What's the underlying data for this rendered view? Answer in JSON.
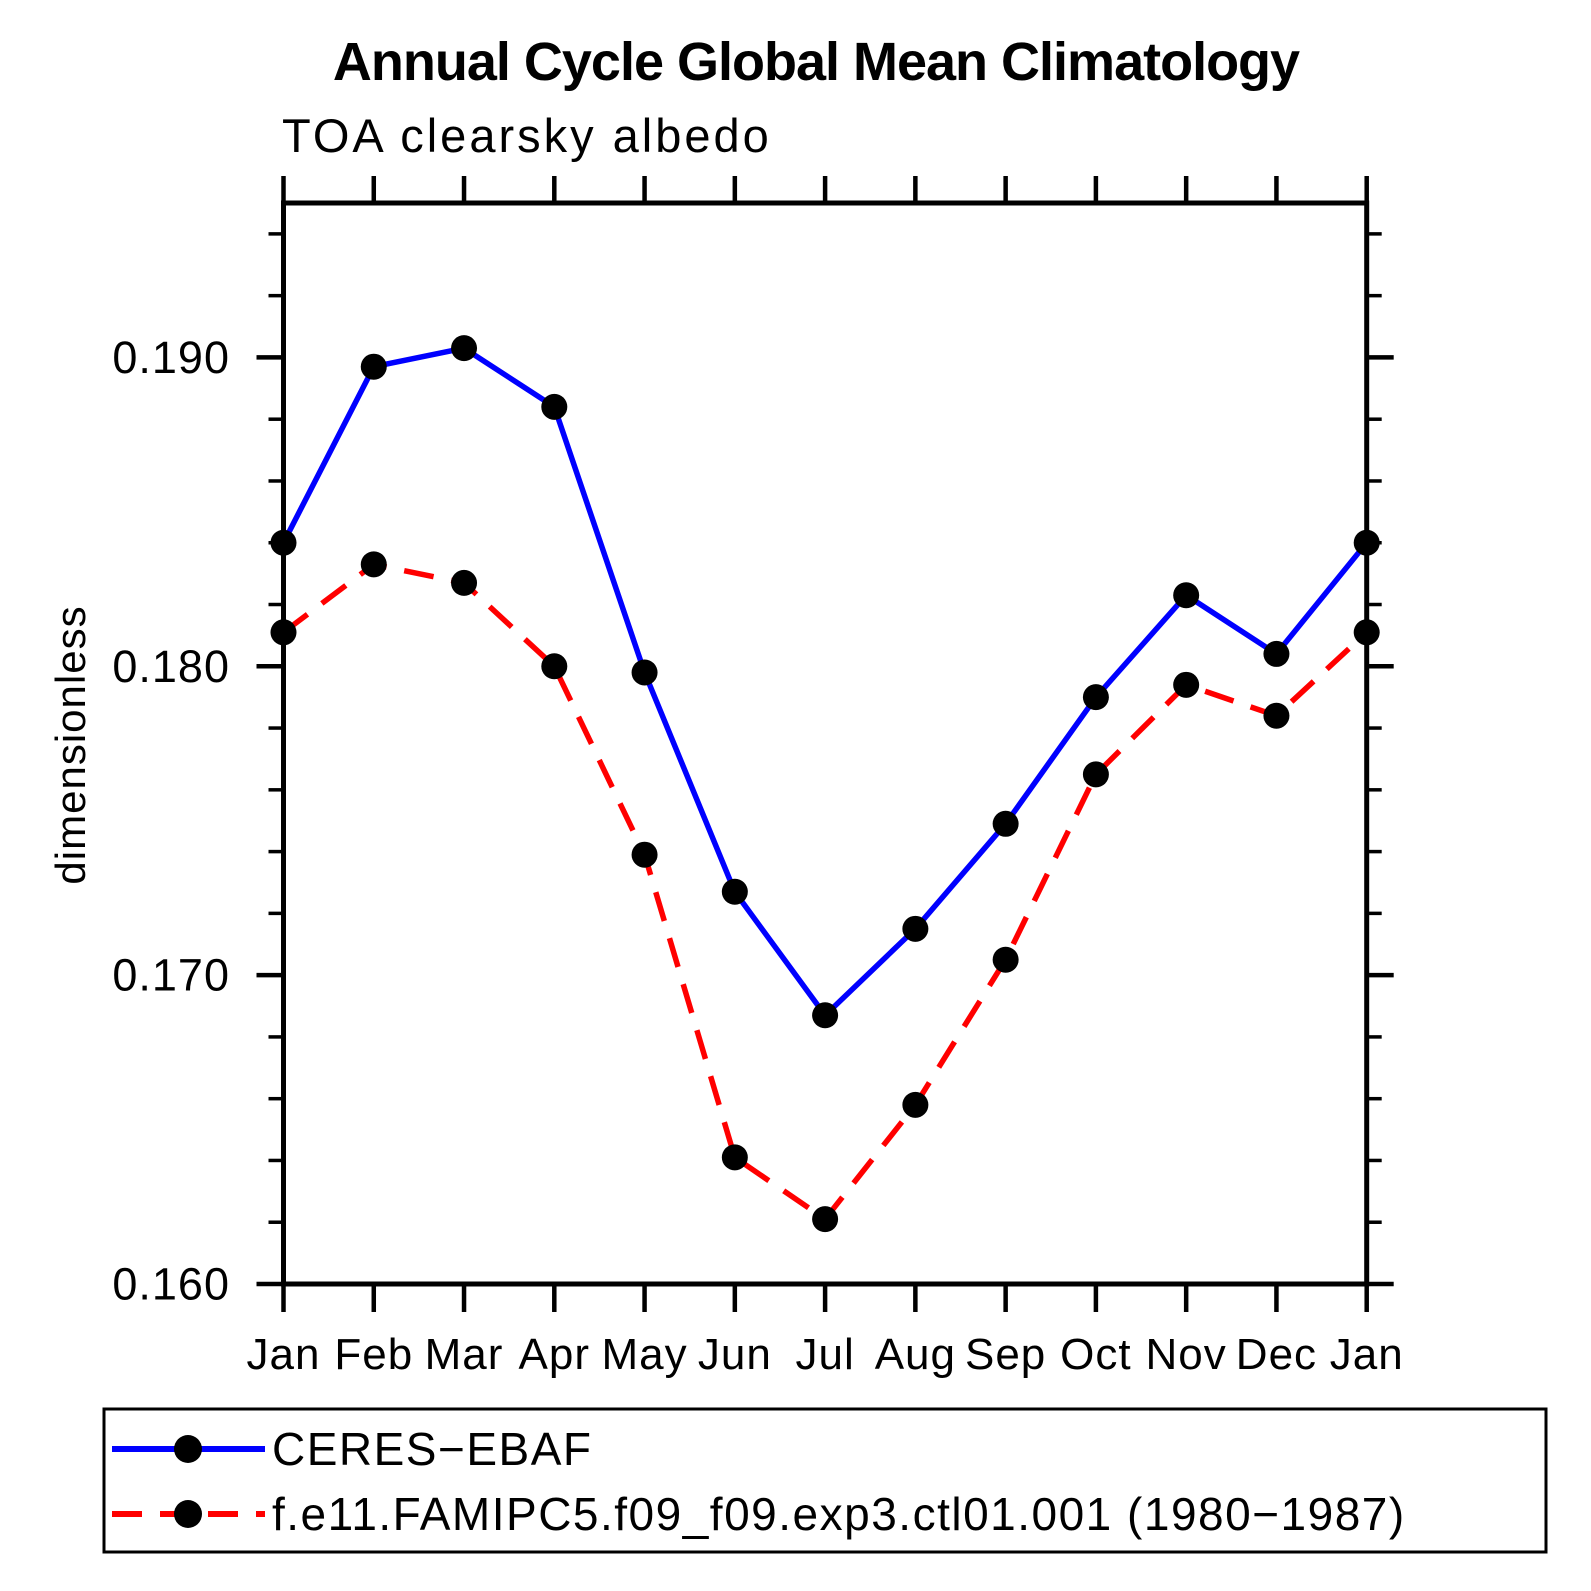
{
  "chart_data": {
    "type": "line",
    "title": "Annual Cycle Global Mean Climatology",
    "subtitle": "TOA clearsky albedo",
    "ylabel": "dimensionless",
    "categories": [
      "Jan",
      "Feb",
      "Mar",
      "Apr",
      "May",
      "Jun",
      "Jul",
      "Aug",
      "Sep",
      "Oct",
      "Nov",
      "Dec",
      "Jan"
    ],
    "ylim": [
      0.16,
      0.195
    ],
    "yticks": {
      "major": [
        0.16,
        0.17,
        0.18,
        0.19
      ],
      "labels": [
        "0.160",
        "0.170",
        "0.180",
        "0.190"
      ],
      "minor_step": 0.002
    },
    "grid": false,
    "legend_position": "bottom",
    "series": [
      {
        "name": "CERES−EBAF",
        "color": "#0000ff",
        "line_style": "solid",
        "marker": "circle",
        "marker_color": "#000000",
        "values": [
          0.184,
          0.1897,
          0.1903,
          0.1884,
          0.1798,
          0.1727,
          0.1687,
          0.1715,
          0.1749,
          0.179,
          0.1823,
          0.1804,
          0.184
        ]
      },
      {
        "name": "f.e11.FAMIPC5.f09_f09.exp3.ctl01.001 (1980−1987)",
        "color": "#ff0000",
        "line_style": "dashed",
        "marker": "circle",
        "marker_color": "#000000",
        "values": [
          0.1811,
          0.1833,
          0.1827,
          0.18,
          0.1739,
          0.1641,
          0.1621,
          0.1658,
          0.1705,
          0.1765,
          0.1794,
          0.1784,
          0.1811
        ]
      }
    ],
    "axis_color": "#000000"
  }
}
